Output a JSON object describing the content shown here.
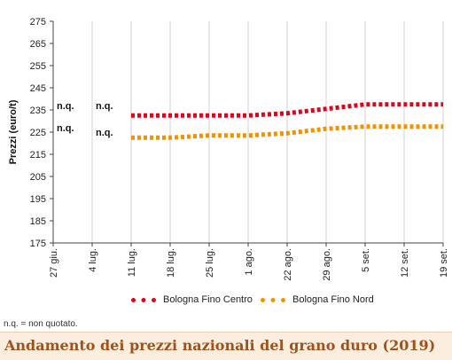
{
  "chart_data": {
    "type": "line",
    "title": "Andamento dei prezzi nazionali del grano duro (2019)",
    "ylabel": "Prezzi (euro/t)",
    "xlabel": "",
    "ylim": [
      175,
      275
    ],
    "yticks": [
      175,
      185,
      195,
      205,
      215,
      225,
      235,
      245,
      255,
      265,
      275
    ],
    "categories": [
      "27 giu.",
      "4 lug.",
      "11 lug.",
      "18 lug.",
      "25 lug.",
      "1 ago.",
      "22 ago.",
      "29 ago.",
      "5 set.",
      "12 set.",
      "19 set."
    ],
    "series": [
      {
        "name": "Bologna Fino Centro",
        "color": "#e2001a",
        "values": [
          null,
          null,
          232.5,
          232.5,
          232.5,
          232.5,
          233.5,
          235.5,
          237.5,
          237.5,
          237.5
        ]
      },
      {
        "name": "Bologna Fino Nord",
        "color": "#f39200",
        "values": [
          null,
          null,
          222.5,
          222.5,
          223.5,
          223.5,
          224.5,
          226.5,
          227.5,
          227.5,
          227.5
        ]
      }
    ],
    "annotations": [
      {
        "text": "n.q.",
        "category": "27 giu.",
        "series": "Bologna Fino Centro"
      },
      {
        "text": "n.q.",
        "category": "4 lug.",
        "series": "Bologna Fino Centro"
      },
      {
        "text": "n.q.",
        "category": "27 giu.",
        "series": "Bologna Fino Nord"
      },
      {
        "text": "n.q.",
        "category": "4 lug.",
        "series": "Bologna Fino Nord"
      }
    ],
    "grid": "vertical",
    "legend_position": "bottom"
  },
  "footnote": "n.q. = non quotato.",
  "colors": {
    "title_background": "#fbeede",
    "title_text": "#a0521e",
    "grid": "#d0d0d0"
  }
}
